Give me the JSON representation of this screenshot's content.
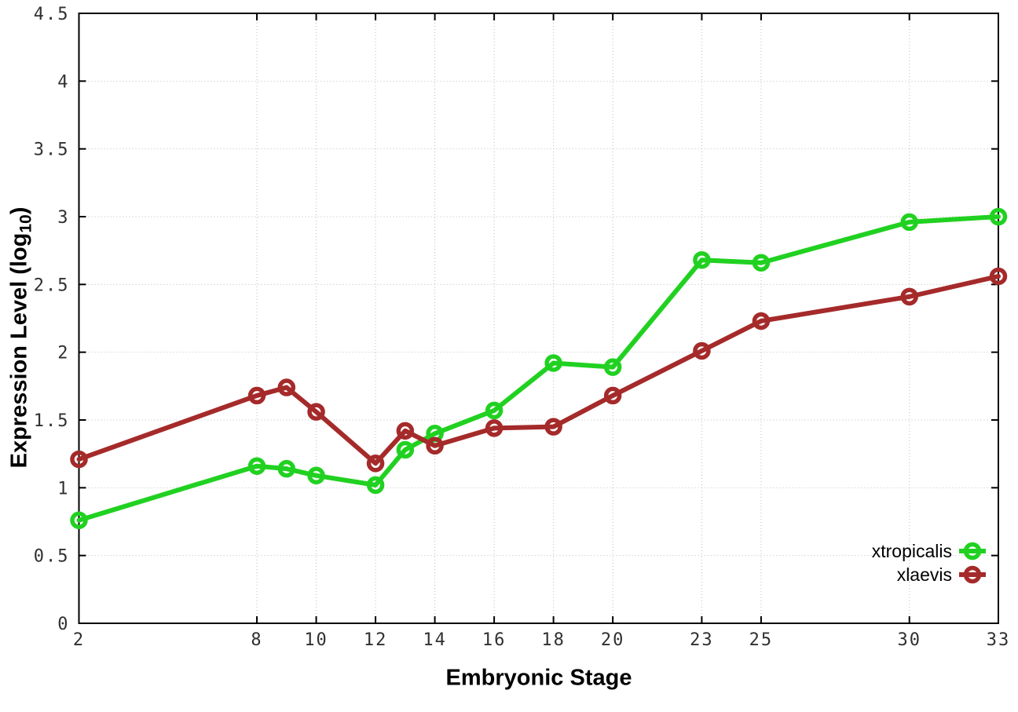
{
  "figure": {
    "xlabel": "Embryonic Stage",
    "ylabel_parts": {
      "prefix": "Expression Level (log",
      "sub": "10",
      "suffix": ")"
    }
  },
  "chart_data": {
    "type": "line",
    "title": "",
    "xlabel": "Embryonic Stage",
    "ylabel": "Expression Level (log10)",
    "x": [
      2,
      8,
      9,
      10,
      12,
      13,
      14,
      16,
      18,
      20,
      23,
      25,
      30,
      33
    ],
    "series": [
      {
        "name": "xtropicalis",
        "color": "#21d121",
        "marker": "open-circle",
        "values": [
          0.76,
          1.16,
          1.14,
          1.09,
          1.02,
          1.28,
          1.4,
          1.57,
          1.92,
          1.89,
          2.68,
          2.66,
          2.96,
          3.0
        ]
      },
      {
        "name": "xlaevis",
        "color": "#a52a2a",
        "marker": "open-circle",
        "values": [
          1.21,
          1.68,
          1.74,
          1.56,
          1.18,
          1.42,
          1.31,
          1.44,
          1.45,
          1.68,
          2.01,
          2.23,
          2.41,
          2.56
        ]
      }
    ],
    "xlim": [
      2,
      33
    ],
    "ylim": [
      0,
      4.5
    ],
    "xticks": [
      2,
      8,
      10,
      12,
      14,
      16,
      18,
      20,
      23,
      25,
      30,
      33
    ],
    "yticks": [
      0,
      0.5,
      1,
      1.5,
      2,
      2.5,
      3,
      3.5,
      4,
      4.5
    ],
    "grid": true,
    "legend_position": "bottom-right",
    "legend_labels": [
      "xtropicalis",
      "xlaevis"
    ]
  },
  "style": {
    "background": "#ffffff",
    "grid_color": "#bdbdbd",
    "border_color": "#000000",
    "tick_color": "#000000",
    "tick_label_color": "#303030",
    "legend_text_color": "#000000"
  }
}
